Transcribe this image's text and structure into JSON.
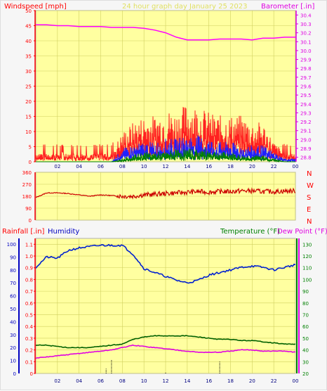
{
  "header": {
    "left_label": "Windspeed [mph]",
    "center_label": "24 hour graph day   January 25 2023",
    "right_label": "Barometer [.in]"
  },
  "colors": {
    "panel_bg": "#ffffa0",
    "grid": "#d0d060",
    "wind_red": "#ff2020",
    "wind_blue": "#2020ff",
    "wind_green": "#008000",
    "barometer": "#ff00ff",
    "direction": "#cc0000",
    "humidity": "#0020d0",
    "temperature": "#006000",
    "dewpoint": "#e000e0",
    "rain": "#000000",
    "label_red": "#ff0000",
    "label_blue": "#0000c0",
    "label_green": "#008000",
    "label_magenta": "#e000e0"
  },
  "bottom_labels": {
    "rain": "Rainfall [.in]",
    "humidity": "Humidity",
    "temperature": "Temperature (°F)",
    "dewpoint": "Dew Point (°F)"
  },
  "compass": [
    "N",
    "W",
    "S",
    "E",
    "N"
  ],
  "chart_data": [
    {
      "type": "line",
      "id": "wind_barometer",
      "title": "24 hour graph day   January 25 2023",
      "xlabel": "",
      "ylabel": "Windspeed [mph]",
      "y2label": "Barometer [.in]",
      "x_ticks": [
        "02",
        "04",
        "06",
        "08",
        "10",
        "12",
        "14",
        "16",
        "18",
        "20",
        "22",
        "00"
      ],
      "ylim": [
        0,
        50
      ],
      "y_ticks": [
        0,
        5,
        10,
        15,
        20,
        25,
        30,
        35,
        40,
        45,
        50
      ],
      "y2lim": [
        28.75,
        30.45
      ],
      "y2_ticks": [
        28.8,
        28.9,
        29.0,
        29.1,
        29.2,
        29.3,
        29.4,
        29.5,
        29.6,
        29.7,
        29.8,
        29.9,
        30.0,
        30.1,
        30.2,
        30.3,
        30.4
      ],
      "barometer_series": {
        "x": [
          0,
          1,
          2,
          3,
          4,
          5,
          6,
          7,
          8,
          9,
          10,
          11,
          12,
          13,
          14,
          15,
          16,
          17,
          18,
          19,
          20,
          21,
          22,
          23,
          24
        ],
        "values": [
          30.29,
          30.29,
          30.28,
          30.28,
          30.27,
          30.27,
          30.27,
          30.26,
          30.26,
          30.26,
          30.25,
          30.23,
          30.2,
          30.15,
          30.12,
          30.12,
          30.12,
          30.13,
          30.13,
          30.13,
          30.12,
          30.14,
          30.14,
          30.15,
          30.15
        ]
      },
      "gust_envelope": {
        "x": [
          0,
          1,
          2,
          3,
          4,
          5,
          6,
          7,
          8,
          9,
          10,
          11,
          12,
          13,
          14,
          15,
          16,
          17,
          18,
          19,
          20,
          21,
          22,
          23,
          24
        ],
        "values": [
          3,
          3,
          3,
          3,
          3,
          3,
          3,
          3,
          9,
          12,
          14,
          14,
          16,
          15,
          18,
          17,
          15,
          14,
          14,
          14,
          12,
          12,
          6,
          3,
          3
        ]
      },
      "avg_envelope": {
        "x": [
          0,
          1,
          2,
          3,
          4,
          5,
          6,
          7,
          8,
          9,
          10,
          11,
          12,
          13,
          14,
          15,
          16,
          17,
          18,
          19,
          20,
          21,
          22,
          23,
          24
        ],
        "values": [
          0,
          0,
          0,
          0,
          0,
          0,
          0,
          0,
          4,
          5,
          6,
          6,
          7,
          7,
          8,
          8,
          7,
          6,
          6,
          5,
          5,
          5,
          3,
          1,
          1
        ]
      },
      "low_envelope": {
        "x": [
          0,
          1,
          2,
          3,
          4,
          5,
          6,
          7,
          8,
          9,
          10,
          11,
          12,
          13,
          14,
          15,
          16,
          17,
          18,
          19,
          20,
          21,
          22,
          23,
          24
        ],
        "values": [
          0,
          0,
          0,
          0,
          0,
          0,
          0,
          0,
          1,
          2,
          3,
          3,
          3,
          4,
          4,
          4,
          4,
          3,
          3,
          2,
          2,
          2,
          1,
          0,
          0
        ]
      }
    },
    {
      "type": "line",
      "id": "wind_direction",
      "ylim": [
        0,
        360
      ],
      "y_ticks": [
        0,
        90,
        180,
        270,
        360
      ],
      "series": {
        "x": [
          0,
          1,
          2,
          3,
          4,
          5,
          6,
          7,
          8,
          9,
          10,
          11,
          12,
          13,
          14,
          15,
          16,
          17,
          18,
          19,
          20,
          21,
          22,
          23,
          24
        ],
        "values": [
          170,
          205,
          205,
          200,
          190,
          180,
          190,
          185,
          180,
          180,
          190,
          195,
          200,
          205,
          210,
          215,
          210,
          215,
          215,
          220,
          220,
          215,
          215,
          218,
          220
        ]
      }
    },
    {
      "type": "line",
      "id": "hum_temp_rain",
      "x_ticks": [
        "02",
        "04",
        "06",
        "08",
        "10",
        "12",
        "14",
        "16",
        "18",
        "20",
        "22",
        "00"
      ],
      "rain_ylim": [
        0,
        1.15
      ],
      "rain_ticks": [
        0,
        0.1,
        0.2,
        0.3,
        0.4,
        0.5,
        0.6,
        0.7,
        0.8,
        0.9,
        1.0,
        1.1
      ],
      "humidity_ylim": [
        0,
        100
      ],
      "humidity_ticks": [
        0,
        10,
        20,
        30,
        40,
        50,
        60,
        70,
        80,
        90,
        100
      ],
      "temp_ylim": [
        20,
        135
      ],
      "temp_ticks": [
        20,
        30,
        40,
        50,
        60,
        70,
        80,
        90,
        100,
        110,
        120,
        130
      ],
      "series": [
        {
          "name": "Humidity",
          "x": [
            0,
            1,
            2,
            3,
            4,
            5,
            6,
            7,
            8,
            9,
            10,
            11,
            12,
            13,
            14,
            15,
            16,
            17,
            18,
            19,
            20,
            21,
            22,
            23,
            24
          ],
          "values": [
            82,
            90,
            89,
            95,
            97,
            98,
            99,
            99,
            99,
            92,
            81,
            78,
            75,
            72,
            70,
            72,
            76,
            78,
            80,
            82,
            83,
            82,
            80,
            82,
            84
          ]
        },
        {
          "name": "Temperature (°F)",
          "x": [
            0,
            1,
            2,
            3,
            4,
            5,
            6,
            7,
            8,
            9,
            10,
            11,
            12,
            13,
            14,
            15,
            16,
            17,
            18,
            19,
            20,
            21,
            22,
            23,
            24
          ],
          "values": [
            44,
            44,
            43,
            42,
            42,
            42,
            43,
            44,
            45,
            49,
            51,
            52,
            52,
            52,
            52,
            51,
            50,
            49,
            49,
            48,
            48,
            47,
            46,
            45,
            45
          ]
        },
        {
          "name": "Dew Point (°F)",
          "x": [
            0,
            1,
            2,
            3,
            4,
            5,
            6,
            7,
            8,
            9,
            10,
            11,
            12,
            13,
            14,
            15,
            16,
            17,
            18,
            19,
            20,
            21,
            22,
            23,
            24
          ],
          "values": [
            33,
            34,
            35,
            36,
            37,
            38,
            39,
            40,
            42,
            44,
            43,
            42,
            41,
            40,
            39,
            38,
            38,
            38,
            39,
            40,
            40,
            39,
            39,
            39,
            38
          ]
        }
      ],
      "rain_marks_x": [
        6.5,
        7.0,
        12.0,
        17.0
      ],
      "rain_marks_values": [
        0.04,
        0.12,
        0.01,
        0.1
      ]
    }
  ]
}
